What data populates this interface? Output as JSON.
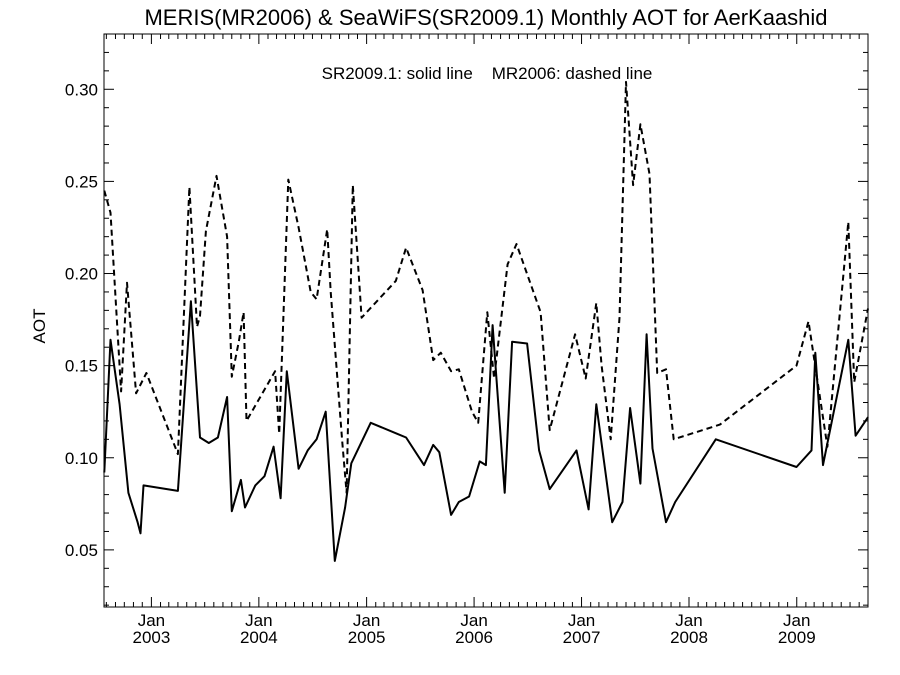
{
  "chart_data": {
    "type": "line",
    "title": "MERIS(MR2006) & SeaWiFS(SR2009.1) Monthly AOT for AerKaashid",
    "annotation": "SR2009.1: solid line    MR2006: dashed line",
    "xlabel": "",
    "ylabel": "AOT",
    "xlim": [
      "2002-07-24",
      "2009-08-31"
    ],
    "ylim": [
      0.019,
      0.33
    ],
    "grid": false,
    "legend": "none",
    "y_ticks": [
      0.05,
      0.1,
      0.15,
      0.2,
      0.25,
      0.3
    ],
    "y_tick_labels": [
      "0.05",
      "0.10",
      "0.15",
      "0.20",
      "0.25",
      "0.30"
    ],
    "x_ticks": [
      {
        "month": "Jan",
        "year": "2003",
        "date": "2003-01-01"
      },
      {
        "month": "Jan",
        "year": "2004",
        "date": "2004-01-01"
      },
      {
        "month": "Jan",
        "year": "2005",
        "date": "2005-01-01"
      },
      {
        "month": "Jan",
        "year": "2006",
        "date": "2006-01-01"
      },
      {
        "month": "Jan",
        "year": "2007",
        "date": "2007-01-01"
      },
      {
        "month": "Jan",
        "year": "2008",
        "date": "2008-01-01"
      },
      {
        "month": "Jan",
        "year": "2009",
        "date": "2009-01-01"
      }
    ],
    "series": [
      {
        "name": "SR2009.1",
        "style": "solid",
        "color": "#000000",
        "points": [
          [
            "2002-07-25",
            0.092
          ],
          [
            "2002-08-15",
            0.164
          ],
          [
            "2002-09-15",
            0.129
          ],
          [
            "2002-10-15",
            0.081
          ],
          [
            "2002-11-15",
            0.065
          ],
          [
            "2002-11-25",
            0.059
          ],
          [
            "2002-12-05",
            0.085
          ],
          [
            "2003-04-01",
            0.082
          ],
          [
            "2003-05-15",
            0.185
          ],
          [
            "2003-06-15",
            0.111
          ],
          [
            "2003-07-15",
            0.108
          ],
          [
            "2003-08-15",
            0.111
          ],
          [
            "2003-09-15",
            0.133
          ],
          [
            "2003-10-01",
            0.071
          ],
          [
            "2003-11-01",
            0.088
          ],
          [
            "2003-11-15",
            0.073
          ],
          [
            "2003-12-20",
            0.085
          ],
          [
            "2004-01-20",
            0.09
          ],
          [
            "2004-02-20",
            0.106
          ],
          [
            "2004-03-15",
            0.078
          ],
          [
            "2004-04-05",
            0.147
          ],
          [
            "2004-05-15",
            0.094
          ],
          [
            "2004-06-15",
            0.104
          ],
          [
            "2004-07-15",
            0.11
          ],
          [
            "2004-08-15",
            0.125
          ],
          [
            "2004-09-15",
            0.044
          ],
          [
            "2004-10-20",
            0.073
          ],
          [
            "2004-11-10",
            0.097
          ],
          [
            "2005-01-15",
            0.119
          ],
          [
            "2005-04-15",
            0.113
          ],
          [
            "2005-05-15",
            0.111
          ],
          [
            "2005-07-15",
            0.096
          ],
          [
            "2005-08-15",
            0.107
          ],
          [
            "2005-09-05",
            0.103
          ],
          [
            "2005-10-15",
            0.069
          ],
          [
            "2005-11-10",
            0.076
          ],
          [
            "2005-12-15",
            0.079
          ],
          [
            "2006-01-20",
            0.098
          ],
          [
            "2006-02-10",
            0.096
          ],
          [
            "2006-03-05",
            0.172
          ],
          [
            "2006-04-15",
            0.081
          ],
          [
            "2006-05-10",
            0.163
          ],
          [
            "2006-06-30",
            0.162
          ],
          [
            "2006-08-10",
            0.104
          ],
          [
            "2006-09-15",
            0.083
          ],
          [
            "2006-12-15",
            0.104
          ],
          [
            "2007-01-25",
            0.072
          ],
          [
            "2007-02-20",
            0.129
          ],
          [
            "2007-04-15",
            0.065
          ],
          [
            "2007-05-20",
            0.076
          ],
          [
            "2007-06-15",
            0.127
          ],
          [
            "2007-07-20",
            0.086
          ],
          [
            "2007-08-10",
            0.167
          ],
          [
            "2007-08-30",
            0.105
          ],
          [
            "2007-10-15",
            0.065
          ],
          [
            "2007-11-15",
            0.076
          ],
          [
            "2008-04-01",
            0.11
          ],
          [
            "2008-12-31",
            0.095
          ],
          [
            "2009-02-20",
            0.104
          ],
          [
            "2009-03-05",
            0.157
          ],
          [
            "2009-03-31",
            0.096
          ],
          [
            "2009-06-25",
            0.164
          ],
          [
            "2009-07-20",
            0.112
          ],
          [
            "2009-08-31",
            0.122
          ]
        ]
      },
      {
        "name": "MR2006",
        "style": "dashed",
        "color": "#000000",
        "points": [
          [
            "2002-07-25",
            0.245
          ],
          [
            "2002-08-15",
            0.233
          ],
          [
            "2002-09-20",
            0.136
          ],
          [
            "2002-10-10",
            0.195
          ],
          [
            "2002-11-10",
            0.135
          ],
          [
            "2002-12-15",
            0.146
          ],
          [
            "2003-04-01",
            0.102
          ],
          [
            "2003-05-10",
            0.247
          ],
          [
            "2003-06-05",
            0.171
          ],
          [
            "2003-06-15",
            0.177
          ],
          [
            "2003-07-05",
            0.223
          ],
          [
            "2003-08-10",
            0.253
          ],
          [
            "2003-09-15",
            0.22
          ],
          [
            "2003-10-01",
            0.144
          ],
          [
            "2003-10-25",
            0.163
          ],
          [
            "2003-11-10",
            0.179
          ],
          [
            "2003-11-20",
            0.12
          ],
          [
            "2004-02-25",
            0.147
          ],
          [
            "2004-03-10",
            0.113
          ],
          [
            "2004-04-10",
            0.251
          ],
          [
            "2004-05-15",
            0.225
          ],
          [
            "2004-06-25",
            0.19
          ],
          [
            "2004-07-15",
            0.186
          ],
          [
            "2004-08-20",
            0.224
          ],
          [
            "2004-09-01",
            0.19
          ],
          [
            "2004-10-10",
            0.109
          ],
          [
            "2004-10-25",
            0.081
          ],
          [
            "2004-11-15",
            0.248
          ],
          [
            "2004-12-15",
            0.176
          ],
          [
            "2005-04-10",
            0.196
          ],
          [
            "2005-05-15",
            0.214
          ],
          [
            "2005-07-10",
            0.191
          ],
          [
            "2005-08-15",
            0.153
          ],
          [
            "2005-09-10",
            0.157
          ],
          [
            "2005-10-15",
            0.147
          ],
          [
            "2005-11-10",
            0.148
          ],
          [
            "2005-12-25",
            0.125
          ],
          [
            "2006-01-15",
            0.119
          ],
          [
            "2006-02-15",
            0.179
          ],
          [
            "2006-03-10",
            0.143
          ],
          [
            "2006-04-25",
            0.205
          ],
          [
            "2006-05-25",
            0.216
          ],
          [
            "2006-08-15",
            0.179
          ],
          [
            "2006-09-15",
            0.115
          ],
          [
            "2006-12-10",
            0.167
          ],
          [
            "2007-01-15",
            0.143
          ],
          [
            "2007-02-20",
            0.184
          ],
          [
            "2007-03-10",
            0.15
          ],
          [
            "2007-04-10",
            0.11
          ],
          [
            "2007-05-10",
            0.176
          ],
          [
            "2007-06-01",
            0.304
          ],
          [
            "2007-06-25",
            0.248
          ],
          [
            "2007-07-20",
            0.281
          ],
          [
            "2007-08-20",
            0.254
          ],
          [
            "2007-09-15",
            0.146
          ],
          [
            "2007-10-15",
            0.148
          ],
          [
            "2007-11-10",
            0.11
          ],
          [
            "2008-04-15",
            0.118
          ],
          [
            "2008-12-31",
            0.15
          ],
          [
            "2009-02-10",
            0.174
          ],
          [
            "2009-04-15",
            0.106
          ],
          [
            "2009-06-25",
            0.228
          ],
          [
            "2009-07-15",
            0.141
          ],
          [
            "2009-08-31",
            0.181
          ]
        ]
      }
    ]
  }
}
